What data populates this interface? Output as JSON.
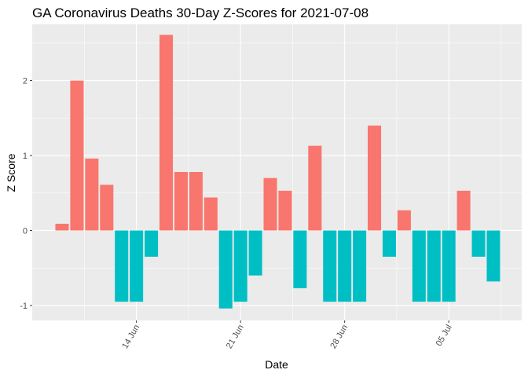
{
  "chart_data": {
    "type": "bar",
    "title": "GA Coronavirus Deaths 30-Day Z-Scores for 2021-07-08",
    "xlabel": "Date",
    "ylabel": "Z Score",
    "x_ticks": [
      "14 Jun",
      "21 Jun",
      "28 Jun",
      "05 Jul"
    ],
    "y_ticks": [
      -1,
      0,
      1,
      2
    ],
    "ylim": [
      -1.2,
      2.75
    ],
    "grid": true,
    "legend": "none",
    "colors": {
      "positive": "#F8766D",
      "negative": "#00BFC4",
      "panel": "#EBEBEB",
      "grid": "#FFFFFF"
    },
    "x": [
      "2021-06-09",
      "2021-06-10",
      "2021-06-11",
      "2021-06-12",
      "2021-06-13",
      "2021-06-14",
      "2021-06-15",
      "2021-06-16",
      "2021-06-17",
      "2021-06-18",
      "2021-06-19",
      "2021-06-20",
      "2021-06-21",
      "2021-06-22",
      "2021-06-23",
      "2021-06-24",
      "2021-06-25",
      "2021-06-26",
      "2021-06-27",
      "2021-06-28",
      "2021-06-29",
      "2021-06-30",
      "2021-07-01",
      "2021-07-02",
      "2021-07-03",
      "2021-07-04",
      "2021-07-05",
      "2021-07-06",
      "2021-07-07",
      "2021-07-08"
    ],
    "values": [
      0.09,
      2.0,
      0.96,
      0.61,
      -0.95,
      -0.95,
      -0.35,
      2.61,
      0.78,
      0.78,
      0.44,
      -1.04,
      -0.95,
      -0.6,
      0.7,
      0.53,
      -0.77,
      1.13,
      -0.95,
      -0.95,
      -0.95,
      1.4,
      -0.35,
      0.27,
      -0.95,
      -0.95,
      -0.95,
      0.53,
      -0.35,
      -0.68
    ]
  }
}
